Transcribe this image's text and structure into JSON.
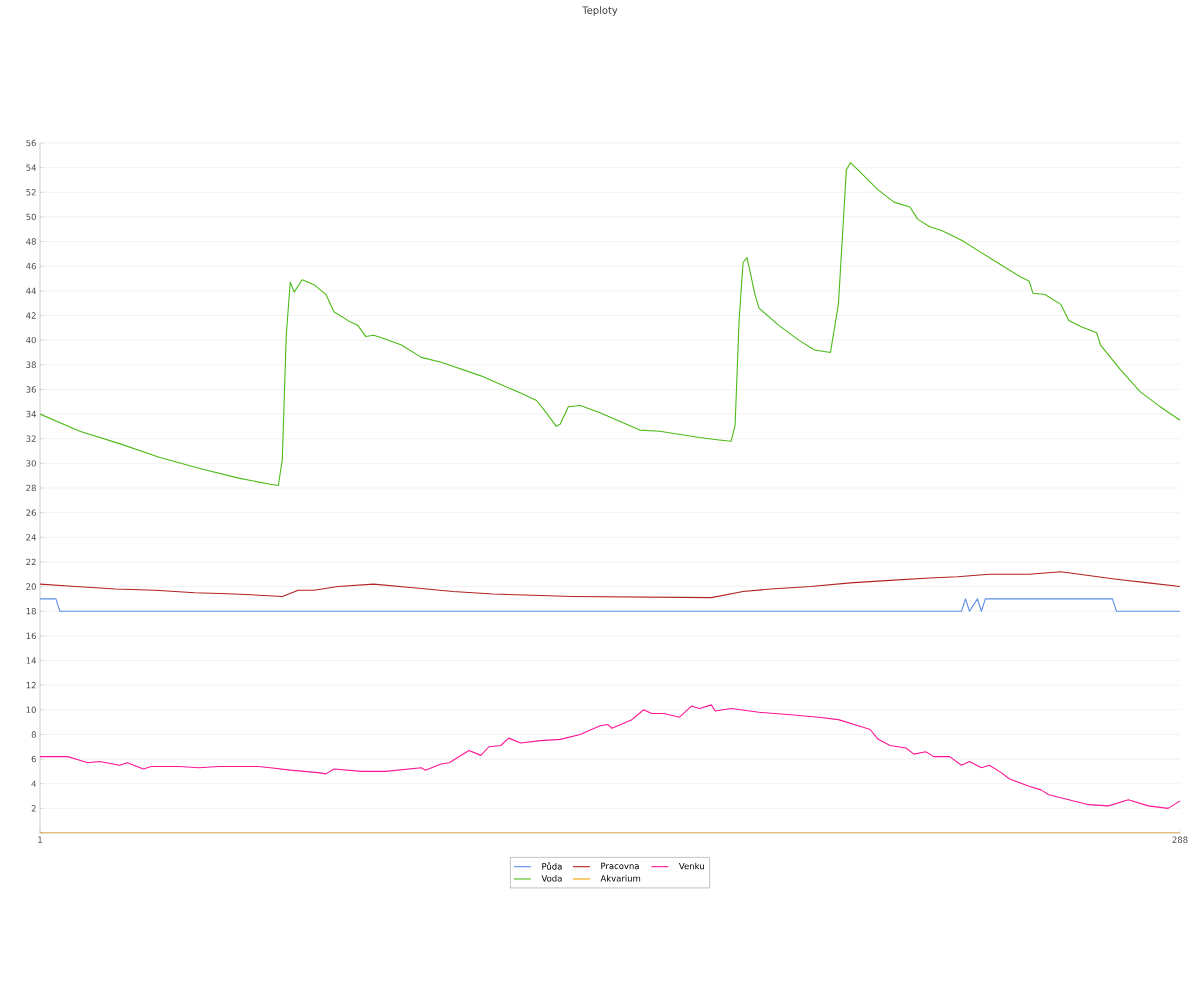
{
  "chart_data": {
    "type": "line",
    "title": "Teploty",
    "xlim": [
      1,
      288
    ],
    "ylim": [
      0,
      56
    ],
    "xticks": [
      1,
      288
    ],
    "yticks": [
      {
        "value": 0,
        "label": null
      },
      2,
      4,
      6,
      8,
      10,
      12,
      14,
      16,
      18,
      20,
      22,
      24,
      26,
      28,
      30,
      32,
      34,
      36,
      38,
      40,
      42,
      44,
      46,
      48,
      50,
      52,
      54,
      56
    ],
    "grid": "y",
    "legend": "bottom",
    "marker": "none",
    "line_style": "solid",
    "series": [
      {
        "name": "Půda",
        "color": "#5b8fe8",
        "x": [
          1,
          5,
          6,
          233,
          234,
          235,
          237,
          238,
          239,
          271,
          272,
          288
        ],
        "values": [
          19,
          19,
          18,
          18,
          19,
          18,
          19,
          18,
          19,
          19,
          18,
          18
        ]
      },
      {
        "name": "Pracovna",
        "color": "#b22222",
        "x": [
          1,
          10,
          20,
          30,
          40,
          50,
          62,
          66,
          70,
          76,
          85,
          95,
          105,
          115,
          125,
          135,
          170,
          178,
          185,
          195,
          205,
          215,
          225,
          232,
          240,
          250,
          258,
          265,
          272,
          280,
          288
        ],
        "values": [
          20.2,
          20.0,
          19.8,
          19.7,
          19.5,
          19.4,
          19.2,
          19.7,
          19.7,
          20.0,
          20.2,
          19.9,
          19.6,
          19.4,
          19.3,
          19.2,
          19.1,
          19.6,
          19.8,
          20.0,
          20.3,
          20.5,
          20.7,
          20.8,
          21.0,
          21.0,
          21.2,
          20.9,
          20.6,
          20.3,
          20.0
        ]
      },
      {
        "name": "Venku",
        "color": "#ff1493",
        "x": [
          1,
          8,
          11,
          13,
          16,
          21,
          23,
          27,
          29,
          36,
          41,
          46,
          56,
          59,
          64,
          71,
          73,
          75,
          82,
          88,
          97,
          98,
          102,
          104,
          109,
          112,
          114,
          117,
          119,
          122,
          127,
          132,
          137,
          142,
          144,
          145,
          150,
          153,
          155,
          158,
          162,
          165,
          167,
          170,
          171,
          175,
          182,
          190,
          197,
          202,
          207,
          210,
          212,
          215,
          219,
          221,
          224,
          226,
          230,
          233,
          235,
          238,
          240,
          243,
          245,
          250,
          253,
          255,
          260,
          265,
          270,
          275,
          280,
          285,
          288
        ],
        "values": [
          6.2,
          6.2,
          5.9,
          5.7,
          5.8,
          5.5,
          5.7,
          5.2,
          5.4,
          5.4,
          5.3,
          5.4,
          5.4,
          5.3,
          5.1,
          4.9,
          4.8,
          5.2,
          5.0,
          5.0,
          5.3,
          5.1,
          5.6,
          5.7,
          6.7,
          6.3,
          7.0,
          7.1,
          7.7,
          7.3,
          7.5,
          7.6,
          8.0,
          8.7,
          8.8,
          8.5,
          9.2,
          10.0,
          9.7,
          9.7,
          9.4,
          10.3,
          10.1,
          10.4,
          9.9,
          10.1,
          9.8,
          9.6,
          9.4,
          9.2,
          8.7,
          8.4,
          7.6,
          7.1,
          6.9,
          6.4,
          6.6,
          6.2,
          6.2,
          5.5,
          5.8,
          5.3,
          5.5,
          4.9,
          4.4,
          3.8,
          3.5,
          3.1,
          2.7,
          2.3,
          2.2,
          2.7,
          2.2,
          2.0,
          2.6
        ]
      },
      {
        "name": "Voda",
        "color": "#4cbb17",
        "x": [
          1,
          11,
          21,
          31,
          41,
          51,
          59,
          61,
          62,
          63,
          64,
          65,
          67,
          70,
          73,
          75,
          79,
          81,
          83,
          85,
          87,
          92,
          97,
          102,
          112,
          117,
          122,
          126,
          128,
          131,
          132,
          134,
          137,
          142,
          147,
          152,
          157,
          167,
          172,
          175,
          176,
          177,
          178,
          179,
          181,
          182,
          187,
          192,
          196,
          200,
          202,
          204,
          205,
          207,
          212,
          216,
          220,
          222,
          225,
          228,
          233,
          238,
          243,
          248,
          250,
          251,
          254,
          258,
          260,
          263,
          267,
          268,
          273,
          278,
          283,
          288
        ],
        "values": [
          34.0,
          32.6,
          31.6,
          30.5,
          29.6,
          28.8,
          28.3,
          28.2,
          30.3,
          40.4,
          44.7,
          43.9,
          44.9,
          44.5,
          43.7,
          42.3,
          41.5,
          41.2,
          40.3,
          40.4,
          40.2,
          39.6,
          38.6,
          38.2,
          37.1,
          36.4,
          35.7,
          35.1,
          34.3,
          33.0,
          33.2,
          34.6,
          34.7,
          34.1,
          33.4,
          32.7,
          32.6,
          32.1,
          31.9,
          31.8,
          33.1,
          41.6,
          46.3,
          46.7,
          43.7,
          42.6,
          41.2,
          40.0,
          39.2,
          39.0,
          42.9,
          53.8,
          54.4,
          53.8,
          52.2,
          51.2,
          50.8,
          49.8,
          49.2,
          48.9,
          48.1,
          47.1,
          46.1,
          45.1,
          44.8,
          43.8,
          43.7,
          42.9,
          41.6,
          41.1,
          40.6,
          39.6,
          37.6,
          35.8,
          34.6,
          33.5
        ]
      },
      {
        "name": "Akvarium",
        "color": "#f0a000",
        "x": [
          1,
          288
        ],
        "values": [
          0,
          0
        ]
      }
    ]
  }
}
